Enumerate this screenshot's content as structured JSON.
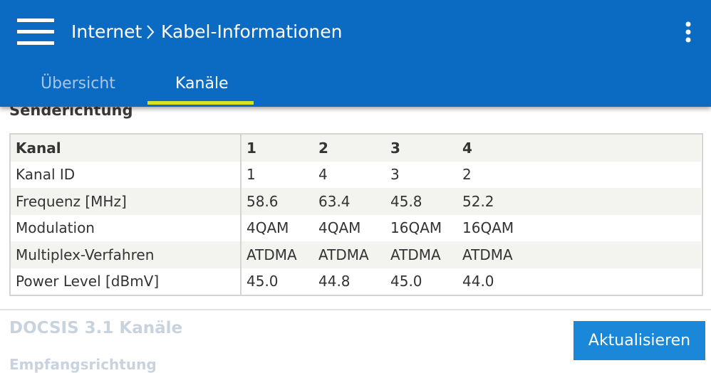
{
  "header": {
    "breadcrumb": [
      "Internet",
      "Kabel-Informationen"
    ],
    "tabs": [
      "Übersicht",
      "Kanäle"
    ]
  },
  "sections": [
    "Senderichtung",
    "DOCSIS 3.1 Kanäle",
    "Empfangsrichtung"
  ],
  "table": {
    "rows": [
      [
        "Kanal",
        "1",
        "2",
        "3",
        "4"
      ],
      [
        "Kanal ID",
        "1",
        "4",
        "3",
        "2"
      ],
      [
        "Frequenz [MHz]",
        "58.6",
        "63.4",
        "45.8",
        "52.2"
      ],
      [
        "Modulation",
        "4QAM",
        "4QAM",
        "16QAM",
        "16QAM"
      ],
      [
        "Multiplex-Verfahren",
        "ATDMA",
        "ATDMA",
        "ATDMA",
        "ATDMA"
      ],
      [
        "Power Level [dBmV]",
        "45.0",
        "44.8",
        "45.0",
        "44.0"
      ]
    ]
  },
  "button": "Aktualisieren"
}
